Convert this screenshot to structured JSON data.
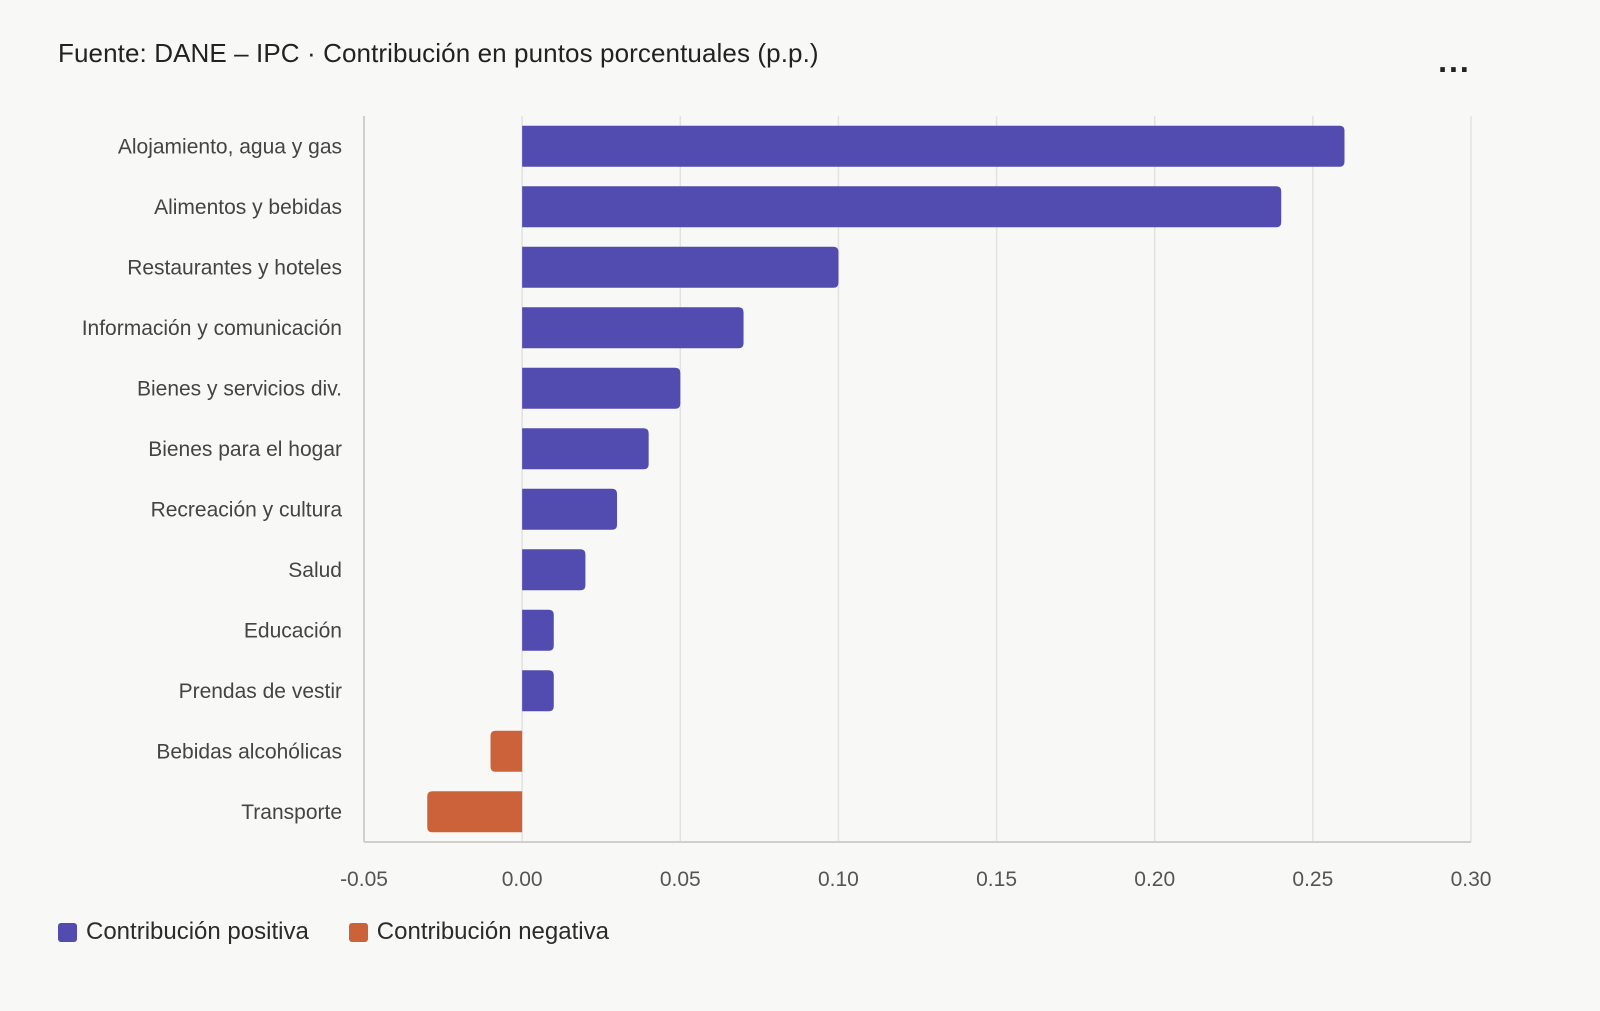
{
  "header": {
    "title": "Fuente: DANE – IPC · Contribución en puntos porcentuales (p.p.)",
    "more_label": "...",
    "more_icon": "more-horizontal-icon"
  },
  "colors": {
    "positive": "#524bb0",
    "negative": "#cc623a",
    "grid": "#e2e2e2",
    "axis": "#cfcfcf"
  },
  "legend": {
    "positive_label": "Contribución positiva",
    "negative_label": "Contribución negativa"
  },
  "chart_data": {
    "type": "bar",
    "orientation": "horizontal",
    "title": "Fuente: DANE – IPC · Contribución en puntos porcentuales (p.p.)",
    "xlabel": "",
    "ylabel": "",
    "xlim": [
      -0.05,
      0.3
    ],
    "xticks": [
      -0.05,
      0.0,
      0.05,
      0.1,
      0.15,
      0.2,
      0.25,
      0.3
    ],
    "xtick_labels": [
      "-0.05",
      "0.00",
      "0.05",
      "0.10",
      "0.15",
      "0.20",
      "0.25",
      "0.30"
    ],
    "grid": true,
    "legend_position": "bottom-left",
    "categories": [
      "Alojamiento, agua y gas",
      "Alimentos y bebidas",
      "Restaurantes y hoteles",
      "Información y comunicación",
      "Bienes y servicios div.",
      "Bienes para el hogar",
      "Recreación y cultura",
      "Salud",
      "Educación",
      "Prendas de vestir",
      "Bebidas alcohólicas",
      "Transporte"
    ],
    "values": [
      0.26,
      0.24,
      0.1,
      0.07,
      0.05,
      0.04,
      0.03,
      0.02,
      0.01,
      0.01,
      -0.01,
      -0.03
    ]
  }
}
